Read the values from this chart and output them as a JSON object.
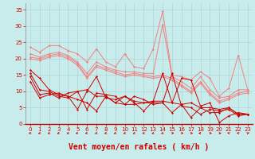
{
  "background_color": "#c8ecec",
  "grid_color": "#aed4d4",
  "xlabel": "Vent moyen/en rafales ( km/h )",
  "xlabel_color": "#cc0000",
  "xlabel_fontsize": 7,
  "tick_color": "#cc0000",
  "tick_fontsize": 5.0,
  "ylim": [
    0,
    37
  ],
  "xlim": [
    -0.5,
    23.5
  ],
  "yticks": [
    0,
    5,
    10,
    15,
    20,
    25,
    30,
    35
  ],
  "xticks": [
    0,
    1,
    2,
    3,
    4,
    5,
    6,
    7,
    8,
    9,
    10,
    11,
    12,
    13,
    14,
    15,
    16,
    17,
    18,
    19,
    20,
    21,
    22,
    23
  ],
  "lines_light": [
    {
      "x": [
        0,
        1,
        2,
        3,
        4,
        5,
        6,
        7,
        8,
        9,
        10,
        11,
        12,
        13,
        14,
        15,
        16,
        17,
        18,
        19,
        20,
        21,
        22,
        23
      ],
      "y": [
        23.5,
        22.0,
        24.0,
        24.0,
        22.5,
        21.5,
        19.0,
        23.0,
        19.0,
        17.5,
        21.5,
        17.5,
        17.0,
        23.0,
        34.5,
        15.0,
        14.5,
        13.5,
        16.0,
        14.0,
        8.5,
        11.0,
        21.0,
        10.5
      ],
      "color": "#f08080",
      "lw": 0.7,
      "marker": "D",
      "ms": 1.5
    },
    {
      "x": [
        0,
        1,
        2,
        3,
        4,
        5,
        6,
        7,
        8,
        9,
        10,
        11,
        12,
        13,
        14,
        15,
        16,
        17,
        18,
        19,
        20,
        21,
        22,
        23
      ],
      "y": [
        21.5,
        20.5,
        21.5,
        22.0,
        21.0,
        19.0,
        15.5,
        19.0,
        17.5,
        16.5,
        16.0,
        16.0,
        15.5,
        15.5,
        30.5,
        14.5,
        13.0,
        11.0,
        14.5,
        10.5,
        8.0,
        8.5,
        10.5,
        10.5
      ],
      "color": "#f08080",
      "lw": 0.7,
      "marker": "D",
      "ms": 1.5
    },
    {
      "x": [
        0,
        1,
        2,
        3,
        4,
        5,
        6,
        7,
        8,
        9,
        10,
        11,
        12,
        13,
        14,
        15,
        16,
        17,
        18,
        19,
        20,
        21,
        22,
        23
      ],
      "y": [
        20.5,
        20.0,
        21.0,
        21.5,
        20.5,
        18.5,
        14.5,
        18.0,
        17.0,
        16.0,
        15.0,
        15.5,
        15.0,
        14.5,
        15.0,
        14.0,
        12.0,
        10.0,
        13.0,
        9.5,
        7.0,
        8.0,
        9.5,
        10.0
      ],
      "color": "#f08080",
      "lw": 0.7,
      "marker": "D",
      "ms": 1.5
    },
    {
      "x": [
        0,
        1,
        2,
        3,
        4,
        5,
        6,
        7,
        8,
        9,
        10,
        11,
        12,
        13,
        14,
        15,
        16,
        17,
        18,
        19,
        20,
        21,
        22,
        23
      ],
      "y": [
        20.0,
        19.5,
        20.5,
        21.0,
        20.0,
        18.0,
        14.0,
        17.5,
        16.5,
        15.5,
        14.5,
        15.0,
        14.5,
        14.0,
        14.5,
        13.5,
        11.5,
        9.5,
        12.5,
        9.0,
        6.5,
        7.5,
        9.0,
        9.5
      ],
      "color": "#f08080",
      "lw": 0.7,
      "marker": "D",
      "ms": 1.5
    }
  ],
  "lines_dark": [
    {
      "x": [
        0,
        1,
        2,
        3,
        4,
        5,
        6,
        7,
        8,
        9,
        10,
        11,
        12,
        13,
        14,
        15,
        16,
        17,
        18,
        19,
        20,
        21,
        22,
        23
      ],
      "y": [
        16.5,
        14.0,
        10.5,
        9.0,
        8.5,
        4.5,
        10.0,
        14.5,
        8.0,
        7.5,
        8.5,
        6.5,
        4.0,
        7.0,
        15.5,
        6.5,
        14.0,
        13.5,
        5.5,
        6.5,
        0.5,
        2.5,
        3.5,
        3.0
      ],
      "color": "#cc0000",
      "lw": 0.7,
      "marker": "D",
      "ms": 1.5
    },
    {
      "x": [
        0,
        1,
        2,
        3,
        4,
        5,
        6,
        7,
        8,
        9,
        10,
        11,
        12,
        13,
        14,
        15,
        16,
        17,
        18,
        19,
        20,
        21,
        22,
        23
      ],
      "y": [
        15.5,
        10.5,
        10.0,
        8.5,
        8.0,
        10.0,
        4.5,
        9.5,
        9.0,
        8.5,
        6.0,
        6.0,
        6.5,
        7.0,
        7.0,
        6.5,
        6.0,
        6.5,
        5.0,
        5.0,
        4.5,
        5.0,
        3.0,
        3.0
      ],
      "color": "#cc0000",
      "lw": 0.7,
      "marker": "D",
      "ms": 1.5
    },
    {
      "x": [
        0,
        1,
        2,
        3,
        4,
        5,
        6,
        7,
        8,
        9,
        10,
        11,
        12,
        13,
        14,
        15,
        16,
        17,
        18,
        19,
        20,
        21,
        22,
        23
      ],
      "y": [
        14.5,
        9.0,
        9.5,
        8.0,
        9.5,
        10.0,
        10.5,
        8.5,
        8.5,
        6.5,
        8.5,
        7.0,
        6.5,
        6.5,
        6.5,
        15.5,
        5.5,
        5.0,
        3.0,
        4.5,
        4.0,
        4.5,
        2.5,
        3.0
      ],
      "color": "#cc0000",
      "lw": 0.7,
      "marker": "D",
      "ms": 1.5
    },
    {
      "x": [
        0,
        1,
        2,
        3,
        4,
        5,
        6,
        7,
        8,
        9,
        10,
        11,
        12,
        13,
        14,
        15,
        16,
        17,
        18,
        19,
        20,
        21,
        22,
        23
      ],
      "y": [
        13.0,
        8.0,
        9.0,
        9.5,
        8.5,
        7.5,
        6.5,
        4.0,
        8.5,
        6.5,
        6.0,
        8.5,
        7.5,
        6.0,
        6.5,
        3.5,
        6.0,
        2.0,
        5.0,
        3.5,
        3.5,
        5.0,
        3.0,
        3.0
      ],
      "color": "#cc0000",
      "lw": 0.7,
      "marker": "D",
      "ms": 1.5
    }
  ],
  "wind_arrows": {
    "x": [
      0,
      1,
      2,
      3,
      4,
      5,
      6,
      7,
      8,
      9,
      10,
      11,
      12,
      13,
      14,
      15,
      16,
      17,
      18,
      19,
      20,
      21,
      22,
      23
    ],
    "angles_deg": [
      225,
      225,
      225,
      225,
      225,
      270,
      270,
      225,
      225,
      225,
      225,
      225,
      225,
      225,
      225,
      90,
      90,
      90,
      270,
      90,
      90,
      315,
      315,
      45
    ],
    "color": "#cc0000"
  }
}
